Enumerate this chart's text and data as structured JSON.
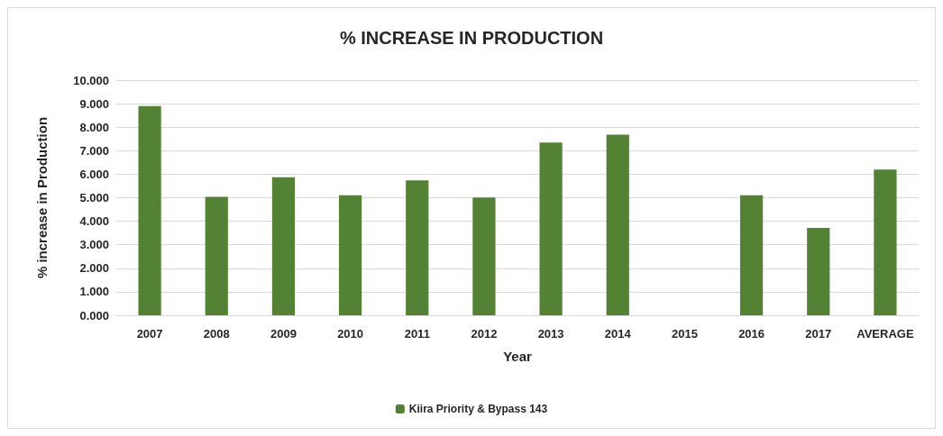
{
  "chart_data": {
    "type": "bar",
    "title": "% INCREASE IN PRODUCTION",
    "xlabel": "Year",
    "ylabel": "% increase in Production",
    "categories": [
      "2007",
      "2008",
      "2009",
      "2010",
      "2011",
      "2012",
      "2013",
      "2014",
      "2015",
      "2016",
      "2017",
      "AVERAGE"
    ],
    "series": [
      {
        "name": "Kiira Priority & Bypass 143",
        "color": "#548235",
        "values": [
          8.9,
          5.04,
          5.87,
          5.11,
          5.74,
          5.01,
          7.35,
          7.68,
          null,
          5.11,
          3.72,
          6.2
        ]
      }
    ],
    "ylim": [
      0,
      10
    ],
    "yticks": [
      {
        "value": 0,
        "label": "0.000"
      },
      {
        "value": 1,
        "label": "1.000"
      },
      {
        "value": 2,
        "label": "2.000"
      },
      {
        "value": 3,
        "label": "3.000"
      },
      {
        "value": 4,
        "label": "4.000"
      },
      {
        "value": 5,
        "label": "5.000"
      },
      {
        "value": 6,
        "label": "6.000"
      },
      {
        "value": 7,
        "label": "7.000"
      },
      {
        "value": 8,
        "label": "8.000"
      },
      {
        "value": 9,
        "label": "9.000"
      },
      {
        "value": 10,
        "label": "10.000"
      }
    ],
    "grid": "y",
    "legend": "bottom"
  }
}
